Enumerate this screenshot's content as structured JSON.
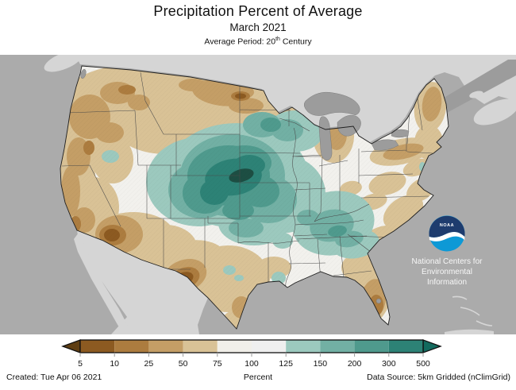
{
  "header": {
    "title": "Precipitation Percent of Average",
    "subtitle": "March 2021",
    "avg_period_prefix": "Average Period: 20",
    "avg_period_sup": "th",
    "avg_period_suffix": " Century"
  },
  "noaa": {
    "logo_text": "NOAA",
    "org_line1": "National Centers for",
    "org_line2": "Environmental",
    "org_line3": "Information",
    "logo_navy": "#1e3c6e",
    "logo_cyan": "#0d99d6"
  },
  "map": {
    "colors": {
      "ocean": "#ababab",
      "foreign_land": "#d5d5d5",
      "lakes": "#9c9c9c",
      "us_base": "#f2f1ed",
      "darkest_teal": "#1d4e43"
    }
  },
  "colorbar": {
    "ticks": [
      "5",
      "10",
      "25",
      "50",
      "75",
      "100",
      "125",
      "150",
      "200",
      "300",
      "500"
    ],
    "segment_colors": [
      "#8c5a21",
      "#ac7c3f",
      "#c49e66",
      "#d9c296",
      "#f1efe9",
      "#efefef",
      "#9cc9be",
      "#72b0a4",
      "#4f9a8d",
      "#2d8276"
    ],
    "arrow_left_color": "#5e3e13",
    "arrow_right_color": "#136a5e"
  },
  "footer": {
    "created": "Created: Tue Apr 06 2021",
    "unit": "Percent",
    "source": "Data Source: 5km Gridded (nClimGrid)"
  },
  "chart_data": {
    "type": "choropleth_map",
    "title": "Precipitation Percent of Average",
    "period": "March 2021",
    "baseline": "20th Century average",
    "unit": "Percent",
    "legend_ticks": [
      5,
      10,
      25,
      50,
      75,
      100,
      125,
      150,
      200,
      300,
      500
    ],
    "legend_bins": [
      "<5",
      "5-10",
      "10-25",
      "25-50",
      "50-75",
      "75-100",
      "100-125",
      "125-150",
      "150-200",
      "200-300",
      "300-500",
      ">500"
    ],
    "regions": [
      {
        "area": "Pacific Northwest (WA, OR, ID, western MT)",
        "percent_of_average": "25-75"
      },
      {
        "area": "North-central Montana / North Dakota spots",
        "percent_of_average": "5-25"
      },
      {
        "area": "California coast and Nevada",
        "percent_of_average": "25-75"
      },
      {
        "area": "Arizona / Southwest deserts",
        "percent_of_average": "5-25"
      },
      {
        "area": "Big Bend region of Texas",
        "percent_of_average": "5-25"
      },
      {
        "area": "Central and South Texas",
        "percent_of_average": "25-75"
      },
      {
        "area": "Central Plains (WY, CO, NE, KS, SD, IA)",
        "percent_of_average": "150-500"
      },
      {
        "area": "South-central Nebraska / north-central Kansas core",
        "percent_of_average": ">500"
      },
      {
        "area": "Minnesota / upper Midwest",
        "percent_of_average": "125-300"
      },
      {
        "area": "Tennessee and lower Ohio Valleys",
        "percent_of_average": "125-200"
      },
      {
        "area": "Gulf coast Louisiana delta",
        "percent_of_average": "125-150"
      },
      {
        "area": "Southeast coast (GA, Carolinas)",
        "percent_of_average": "25-75"
      },
      {
        "area": "Florida peninsula",
        "percent_of_average": "10-75"
      },
      {
        "area": "Great Lakes / Michigan",
        "percent_of_average": "25-75"
      },
      {
        "area": "New England and eastern New York",
        "percent_of_average": "25-75"
      }
    ]
  }
}
